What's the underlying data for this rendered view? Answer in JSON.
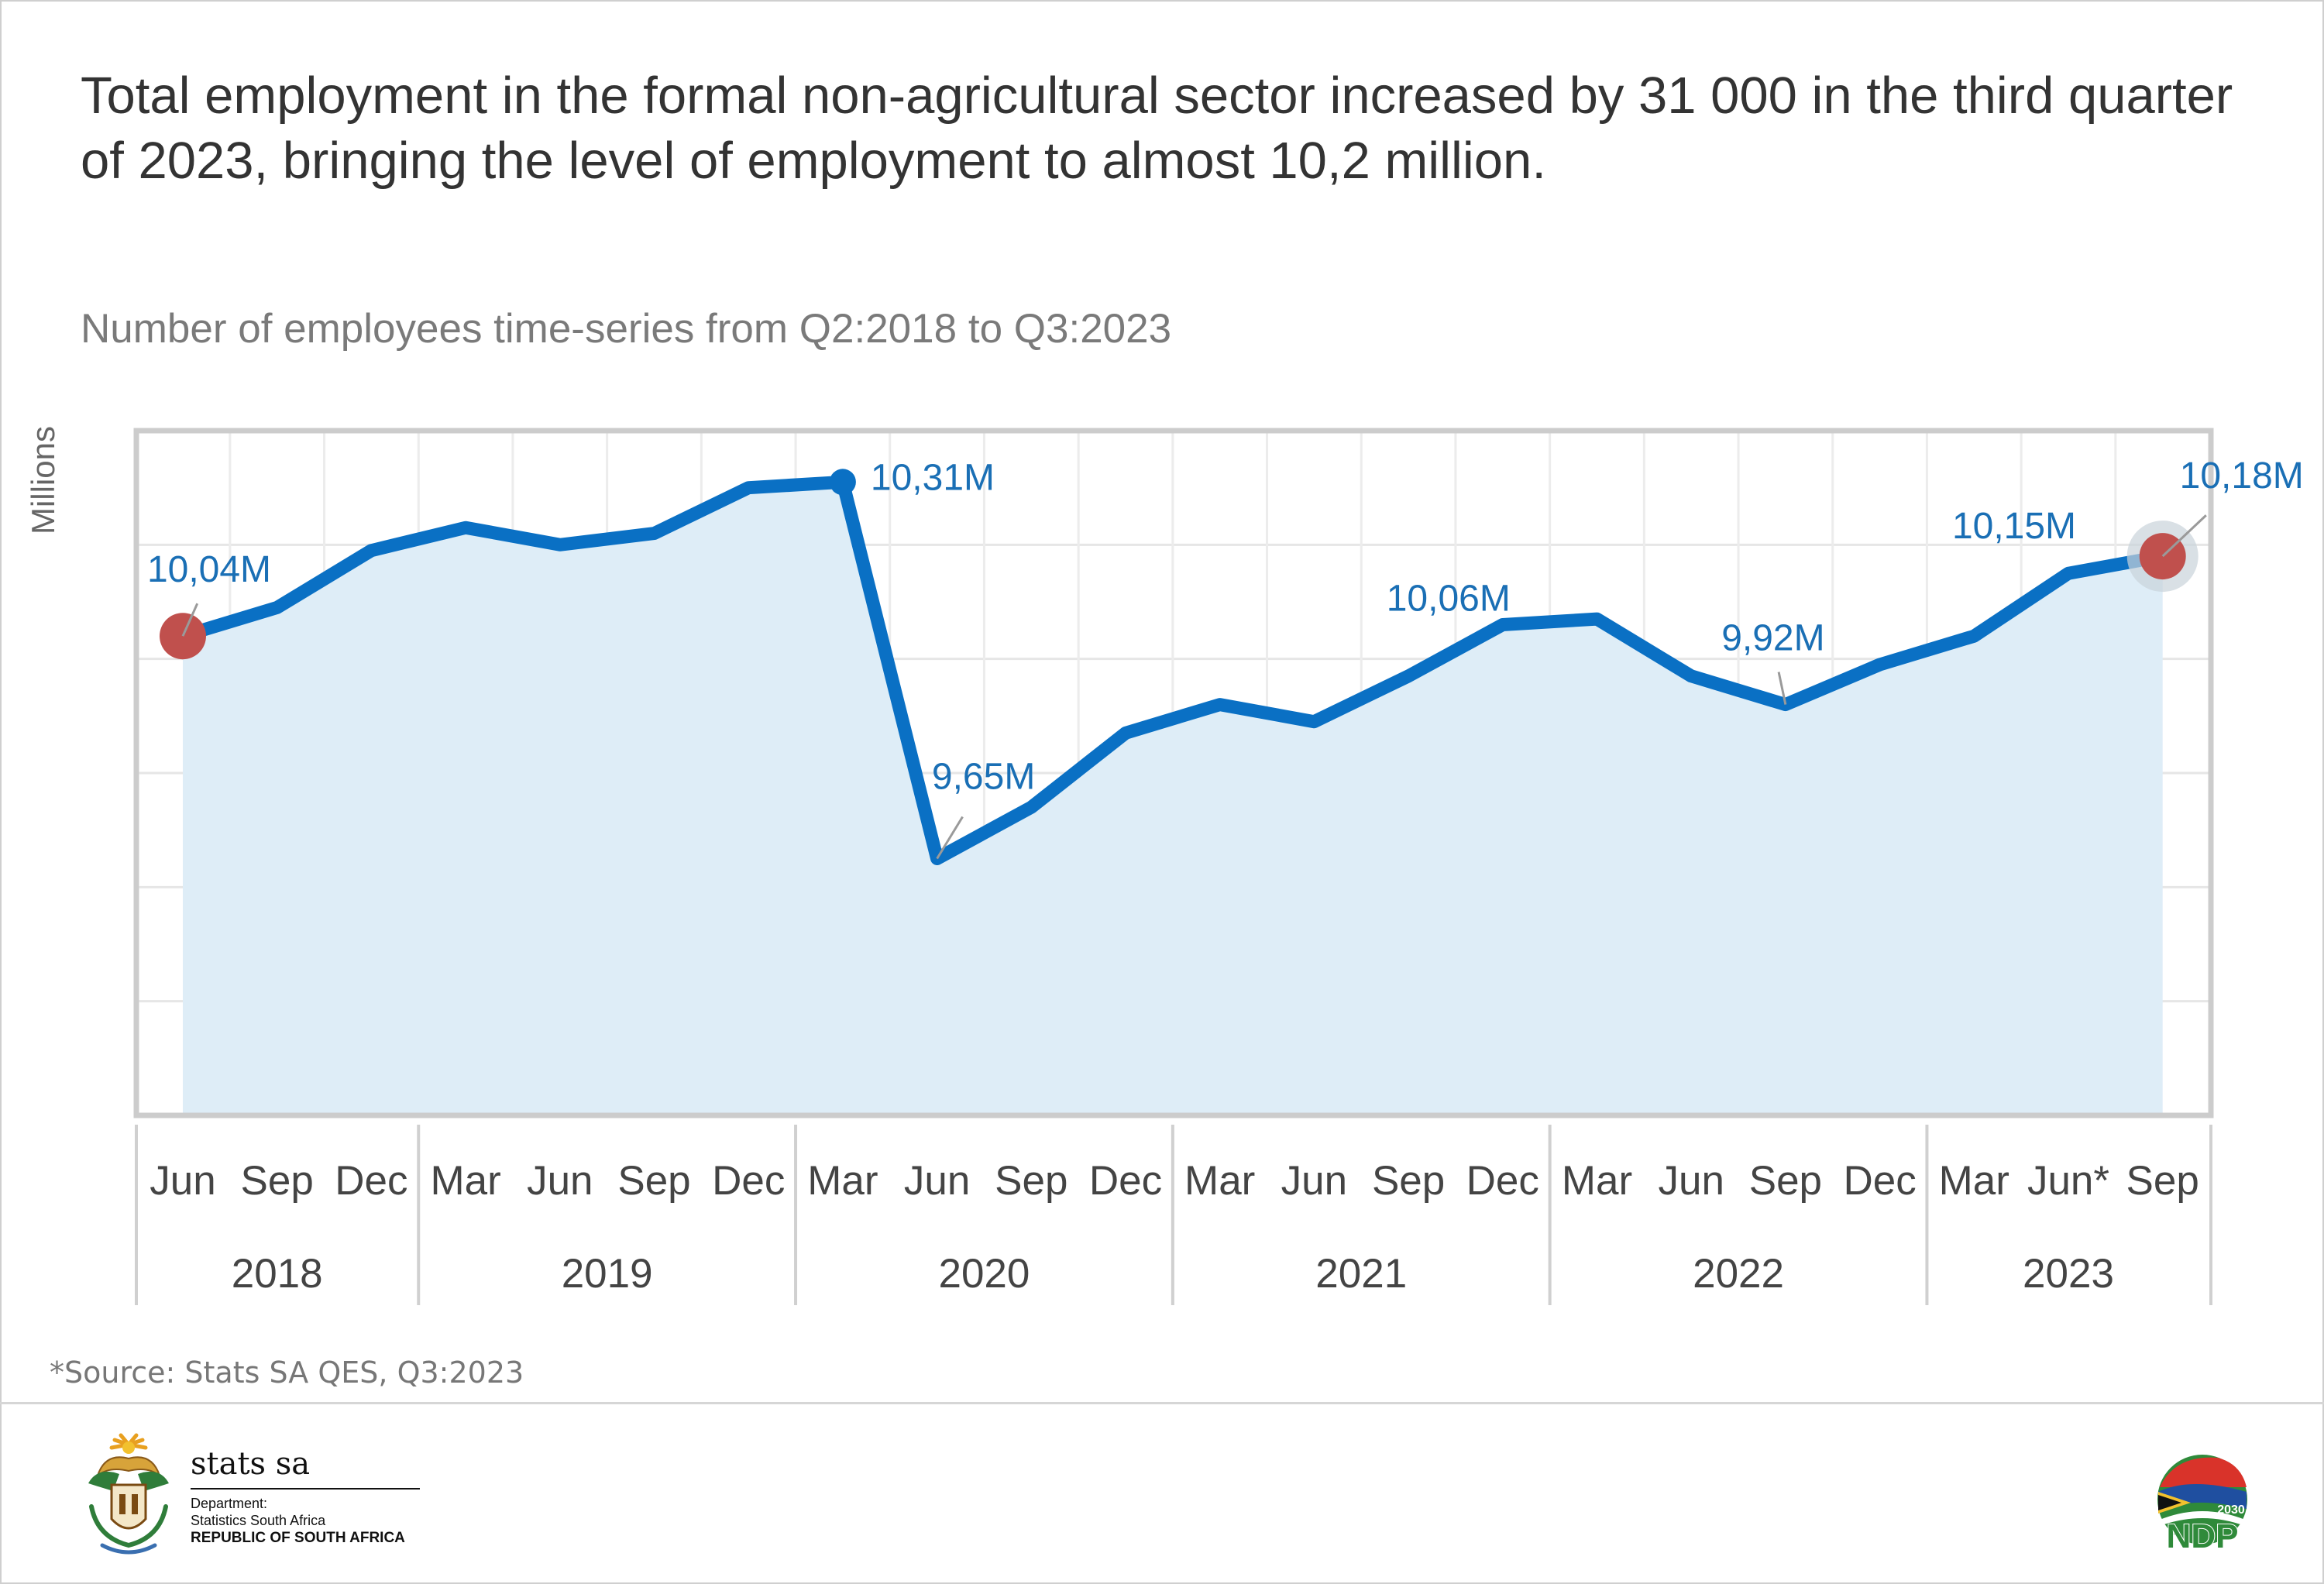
{
  "headline": "Total employment in the formal non-agricultural sector increased by 31 000 in the third quarter of 2023, bringing the level of employment to almost 10,2 million.",
  "subtitle": "Number of employees time-series from Q2:2018 to Q3:2023",
  "source": "*Source: Stats SA QES, Q3:2023",
  "colors": {
    "line": "#0a70c4",
    "area": "#deedf7",
    "label": "#1a6fb5",
    "highlight": "#c0504d"
  },
  "chart_data": {
    "type": "area",
    "ylabel": "Millions",
    "ylim": [
      9.2,
      10.4
    ],
    "grid": true,
    "x": [
      "Jun",
      "Sep",
      "Dec",
      "Mar",
      "Jun",
      "Sep",
      "Dec",
      "Mar",
      "Jun",
      "Sep",
      "Dec",
      "Mar",
      "Jun",
      "Sep",
      "Dec",
      "Mar",
      "Jun",
      "Sep",
      "Dec",
      "Mar",
      "Jun*",
      "Sep"
    ],
    "years": [
      {
        "label": "2018",
        "count": 3
      },
      {
        "label": "2019",
        "count": 4
      },
      {
        "label": "2020",
        "count": 4
      },
      {
        "label": "2021",
        "count": 4
      },
      {
        "label": "2022",
        "count": 4
      },
      {
        "label": "2023",
        "count": 3
      }
    ],
    "series": [
      {
        "values": [
          10.04,
          10.09,
          10.19,
          10.23,
          10.2,
          10.22,
          10.3,
          10.31,
          9.65,
          9.74,
          9.87,
          9.92,
          9.89,
          9.97,
          10.06,
          10.07,
          9.97,
          9.92,
          9.99,
          10.04,
          10.15,
          10.18
        ]
      }
    ],
    "annotations": [
      {
        "index": 0,
        "text": "10,04M"
      },
      {
        "index": 7,
        "text": "10,31M"
      },
      {
        "index": 8,
        "text": "9,65M"
      },
      {
        "index": 14,
        "text": "10,06M"
      },
      {
        "index": 17,
        "text": "9,92M"
      },
      {
        "index": 20,
        "text": "10,15M"
      },
      {
        "index": 21,
        "text": "10,18M"
      }
    ]
  },
  "logos": {
    "stats": {
      "name": "stats sa",
      "line1": "Department:",
      "line2": "Statistics South Africa",
      "line3": "REPUBLIC OF SOUTH AFRICA"
    },
    "ndp": {
      "text": "NDP",
      "year": "2030"
    }
  }
}
